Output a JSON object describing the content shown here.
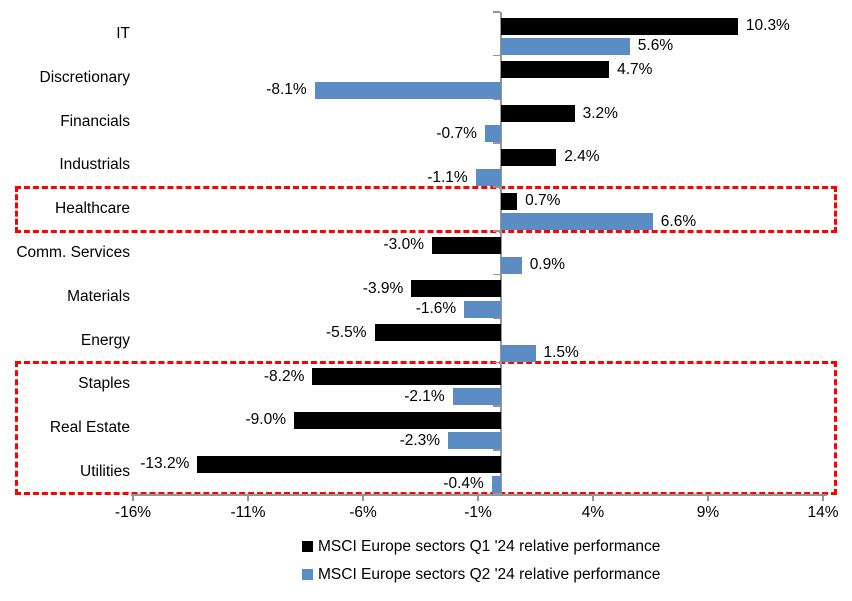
{
  "chart_data": {
    "type": "bar",
    "orientation": "horizontal",
    "title": "",
    "categories": [
      "IT",
      "Discretionary",
      "Financials",
      "Industrials",
      "Healthcare",
      "Comm. Services",
      "Materials",
      "Energy",
      "Staples",
      "Real Estate",
      "Utilities"
    ],
    "series": [
      {
        "name": "MSCI Europe sectors Q1 '24 relative performance",
        "color": "#000000",
        "values": [
          10.3,
          4.7,
          3.2,
          2.4,
          0.7,
          -3.0,
          -3.9,
          -5.5,
          -8.2,
          -9.0,
          -13.2
        ]
      },
      {
        "name": "MSCI Europe sectors Q2 '24 relative performance",
        "color": "#5B8CC4",
        "values": [
          5.6,
          -8.1,
          -0.7,
          -1.1,
          6.6,
          0.9,
          -1.6,
          1.5,
          -2.1,
          -2.3,
          -0.4
        ]
      }
    ],
    "data_labels": {
      "format": "0.0%",
      "q1": [
        "10.3%",
        "4.7%",
        "3.2%",
        "2.4%",
        "0.7%",
        "-3.0%",
        "-3.9%",
        "-5.5%",
        "-8.2%",
        "-9.0%",
        "-13.2%"
      ],
      "q2": [
        "5.6%",
        "-8.1%",
        "-0.7%",
        "-1.1%",
        "6.6%",
        "0.9%",
        "-1.6%",
        "1.5%",
        "-2.1%",
        "-2.3%",
        "-0.4%"
      ]
    },
    "x_ticks": [
      {
        "label": "-16%",
        "value": -16
      },
      {
        "label": "-11%",
        "value": -11
      },
      {
        "label": "-6%",
        "value": -6
      },
      {
        "label": "-1%",
        "value": -1
      },
      {
        "label": "4%",
        "value": 4
      },
      {
        "label": "9%",
        "value": 9
      },
      {
        "label": "14%",
        "value": 14
      }
    ],
    "xlim": [
      -16,
      14
    ],
    "grid": false,
    "legend_position": "bottom",
    "axis_color": "#969696",
    "highlight_boxes": [
      {
        "color": "#FF0000",
        "from": "Healthcare",
        "to": "Healthcare"
      },
      {
        "color": "#FF0000",
        "from": "Staples",
        "to": "Utilities"
      }
    ]
  }
}
